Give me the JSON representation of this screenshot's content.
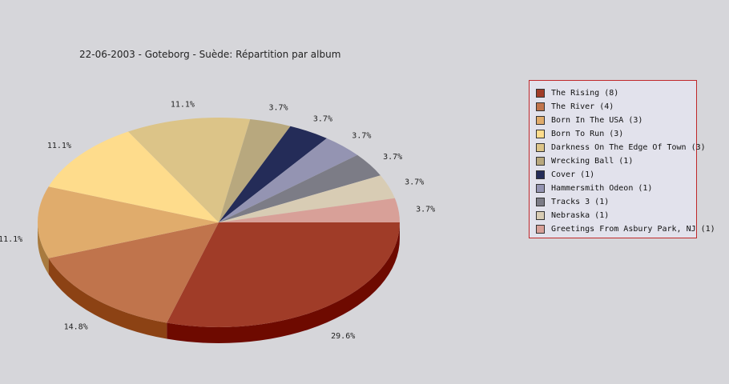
{
  "chart_data": {
    "type": "pie",
    "title": "22-06-2003 - Goteborg - Suède:  Répartition par album",
    "slices": [
      {
        "name": "The Rising",
        "legend": "The Rising (8)",
        "value": 8,
        "label": "29.6%",
        "color": "#a03c28",
        "side": "#6e0a00"
      },
      {
        "name": "The River",
        "legend": "The River (4)",
        "value": 4,
        "label": "14.8%",
        "color": "#c0744c",
        "side": "#8c4214"
      },
      {
        "name": "Born In The USA",
        "legend": "Born In The USA (3)",
        "value": 3,
        "label": "11.1%",
        "color": "#e0ac6c",
        "side": "#a87a3e"
      },
      {
        "name": "Born To Run",
        "legend": "Born To Run (3)",
        "value": 3,
        "label": "11.1%",
        "color": "#fedc8c",
        "side": "#c0a45a"
      },
      {
        "name": "Darkness On The Edge Of Town",
        "legend": "Darkness On The Edge Of Town (3)",
        "value": 3,
        "label": "11.1%",
        "color": "#dcc488",
        "side": "#a48e58"
      },
      {
        "name": "Wrecking Ball",
        "legend": "Wrecking Ball (1)",
        "value": 1,
        "label": "3.7%",
        "color": "#b8a87e",
        "side": "#847650"
      },
      {
        "name": "Cover",
        "legend": "Cover (1)",
        "value": 1,
        "label": "3.7%",
        "color": "#242c58",
        "side": "#10163a"
      },
      {
        "name": "Hammersmith Odeon",
        "legend": "Hammersmith Odeon  (1)",
        "value": 1,
        "label": "3.7%",
        "color": "#9494b2",
        "side": "#64647e"
      },
      {
        "name": "Tracks 3",
        "legend": "Tracks 3 (1)",
        "value": 1,
        "label": "3.7%",
        "color": "#7c7c86",
        "side": "#52525a"
      },
      {
        "name": "Nebraska",
        "legend": "Nebraska (1)",
        "value": 1,
        "label": "3.7%",
        "color": "#d8ccb4",
        "side": "#a89a80"
      },
      {
        "name": "Greetings From Asbury Park, NJ",
        "legend": "Greetings From Asbury Park, NJ (1)",
        "value": 1,
        "label": "3.7%",
        "color": "#d8a098",
        "side": "#a86e66"
      }
    ],
    "legend_position": "right"
  }
}
